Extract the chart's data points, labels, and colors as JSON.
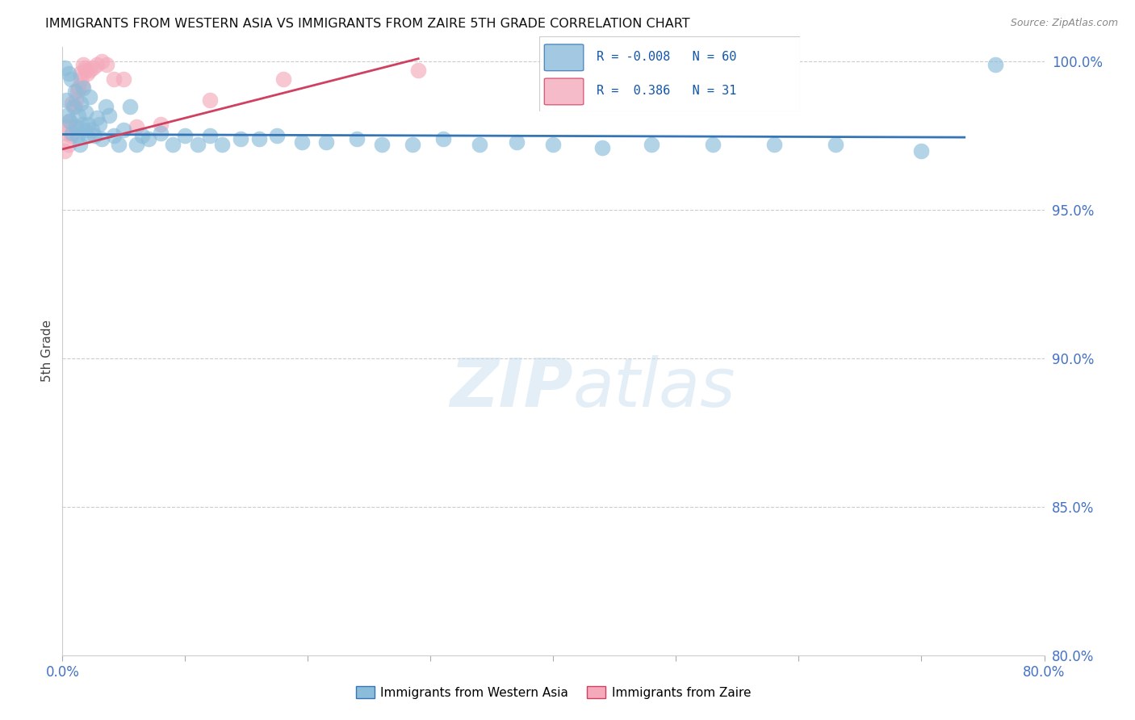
{
  "title": "IMMIGRANTS FROM WESTERN ASIA VS IMMIGRANTS FROM ZAIRE 5TH GRADE CORRELATION CHART",
  "source": "Source: ZipAtlas.com",
  "ylabel": "5th Grade",
  "legend_label_blue": "Immigrants from Western Asia",
  "legend_label_pink": "Immigrants from Zaire",
  "R_blue": -0.008,
  "N_blue": 60,
  "R_pink": 0.386,
  "N_pink": 31,
  "xlim": [
    0.0,
    0.8
  ],
  "ylim": [
    0.8,
    1.005
  ],
  "color_blue": "#8BBCDA",
  "color_pink": "#F4AABB",
  "line_color_blue": "#3575B5",
  "line_color_pink": "#D04060",
  "blue_scatter_x": [
    0.002,
    0.003,
    0.004,
    0.005,
    0.006,
    0.007,
    0.008,
    0.009,
    0.01,
    0.011,
    0.012,
    0.013,
    0.014,
    0.015,
    0.016,
    0.017,
    0.018,
    0.019,
    0.02,
    0.021,
    0.022,
    0.024,
    0.026,
    0.028,
    0.03,
    0.032,
    0.035,
    0.038,
    0.042,
    0.046,
    0.05,
    0.055,
    0.06,
    0.065,
    0.07,
    0.08,
    0.09,
    0.1,
    0.11,
    0.12,
    0.13,
    0.145,
    0.16,
    0.175,
    0.195,
    0.215,
    0.24,
    0.26,
    0.285,
    0.31,
    0.34,
    0.37,
    0.4,
    0.44,
    0.48,
    0.53,
    0.58,
    0.63,
    0.7,
    0.76
  ],
  "blue_scatter_y": [
    0.998,
    0.987,
    0.982,
    0.996,
    0.98,
    0.994,
    0.976,
    0.985,
    0.99,
    0.978,
    0.975,
    0.982,
    0.972,
    0.986,
    0.979,
    0.991,
    0.977,
    0.983,
    0.975,
    0.979,
    0.988,
    0.977,
    0.975,
    0.981,
    0.979,
    0.974,
    0.985,
    0.982,
    0.975,
    0.972,
    0.977,
    0.985,
    0.972,
    0.975,
    0.974,
    0.976,
    0.972,
    0.975,
    0.972,
    0.975,
    0.972,
    0.974,
    0.974,
    0.975,
    0.973,
    0.973,
    0.974,
    0.972,
    0.972,
    0.974,
    0.972,
    0.973,
    0.972,
    0.971,
    0.972,
    0.972,
    0.972,
    0.972,
    0.97,
    0.999
  ],
  "pink_scatter_x": [
    0.002,
    0.003,
    0.004,
    0.005,
    0.006,
    0.007,
    0.008,
    0.009,
    0.01,
    0.011,
    0.012,
    0.013,
    0.014,
    0.015,
    0.016,
    0.017,
    0.018,
    0.019,
    0.02,
    0.022,
    0.025,
    0.028,
    0.032,
    0.036,
    0.042,
    0.05,
    0.06,
    0.08,
    0.12,
    0.18,
    0.29
  ],
  "pink_scatter_y": [
    0.97,
    0.976,
    0.978,
    0.972,
    0.98,
    0.975,
    0.986,
    0.978,
    0.985,
    0.987,
    0.99,
    0.991,
    0.996,
    0.994,
    0.992,
    0.999,
    0.998,
    0.997,
    0.996,
    0.997,
    0.998,
    0.999,
    1.0,
    0.999,
    0.994,
    0.994,
    0.978,
    0.979,
    0.987,
    0.994,
    0.997
  ],
  "blue_regline_x": [
    0.0,
    0.735
  ],
  "blue_regline_y": [
    0.9755,
    0.9745
  ],
  "pink_regline_x": [
    0.0,
    0.29
  ],
  "pink_regline_y": [
    0.9705,
    1.001
  ]
}
